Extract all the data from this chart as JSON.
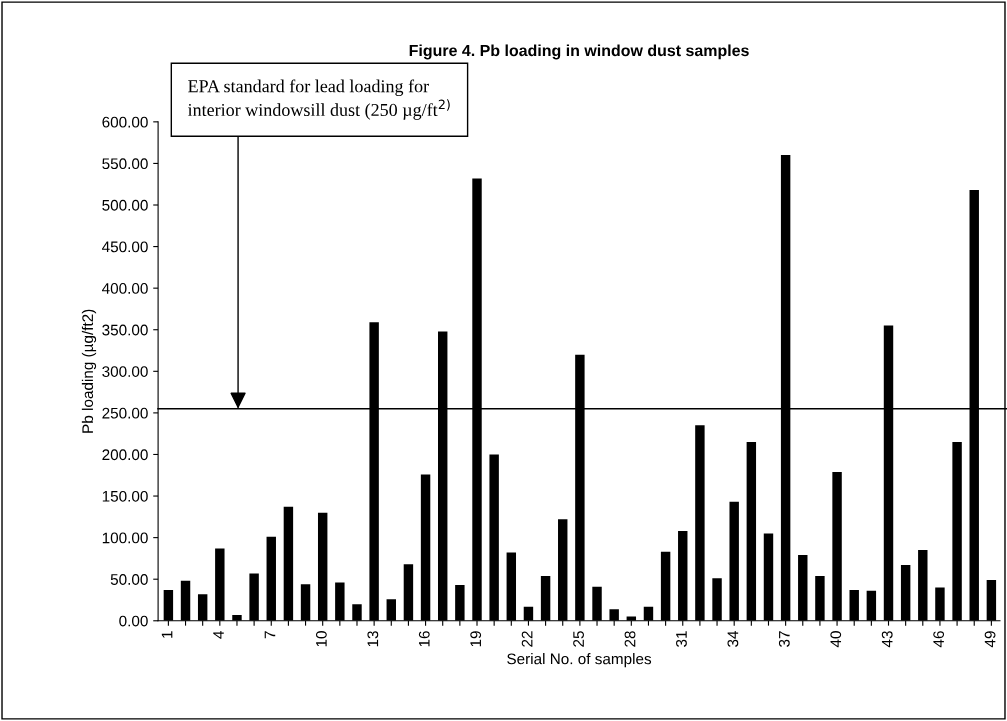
{
  "chart_data": {
    "type": "bar",
    "title": "Figure 4. Pb loading in window dust samples",
    "xlabel": "Serial No. of samples",
    "ylabel": "Pb loading (µg/ft2)",
    "categories": [
      "1",
      null,
      null,
      "4",
      null,
      null,
      "7",
      null,
      null,
      "10",
      null,
      null,
      "13",
      null,
      null,
      "16",
      null,
      null,
      "19",
      null,
      null,
      "22",
      null,
      null,
      "25",
      null,
      null,
      "28",
      null,
      null,
      "31",
      null,
      null,
      "34",
      null,
      null,
      "37",
      null,
      null,
      "40",
      null,
      null,
      "43",
      null,
      null,
      "46",
      null,
      null,
      "49"
    ],
    "values": [
      37,
      48,
      32,
      87,
      7,
      57,
      101,
      137,
      44,
      130,
      46,
      20,
      359,
      26,
      68,
      176,
      348,
      43,
      532,
      200,
      82,
      17,
      54,
      122,
      320,
      41,
      14,
      5,
      17,
      83,
      108,
      235,
      51,
      143,
      215,
      105,
      560,
      79,
      54,
      179,
      37,
      36,
      355,
      67,
      85,
      40,
      215,
      518,
      49
    ],
    "color": "#000000",
    "ylim": [
      0,
      600
    ],
    "yticks": [
      {
        "value": 0,
        "label": "0.00"
      },
      {
        "value": 50,
        "label": "50.00"
      },
      {
        "value": 100,
        "label": "100.00"
      },
      {
        "value": 150,
        "label": "150.00"
      },
      {
        "value": 200,
        "label": "200.00"
      },
      {
        "value": 250,
        "label": "250.00"
      },
      {
        "value": 300,
        "label": "300.00"
      },
      {
        "value": 350,
        "label": "350.00"
      },
      {
        "value": 400,
        "label": "400.00"
      },
      {
        "value": 450,
        "label": "450.00"
      },
      {
        "value": 500,
        "label": "500.00"
      },
      {
        "value": 550,
        "label": "550.00"
      },
      {
        "value": 600,
        "label": "600.00"
      }
    ],
    "ref_lines": [
      {
        "axis": "y",
        "value": 255,
        "color": "#000000",
        "label": "EPA standard for lead loading for\ninterior windowsill dust (250 µg/ft$^{2)}$"
      }
    ],
    "grid": false,
    "legend": false
  }
}
